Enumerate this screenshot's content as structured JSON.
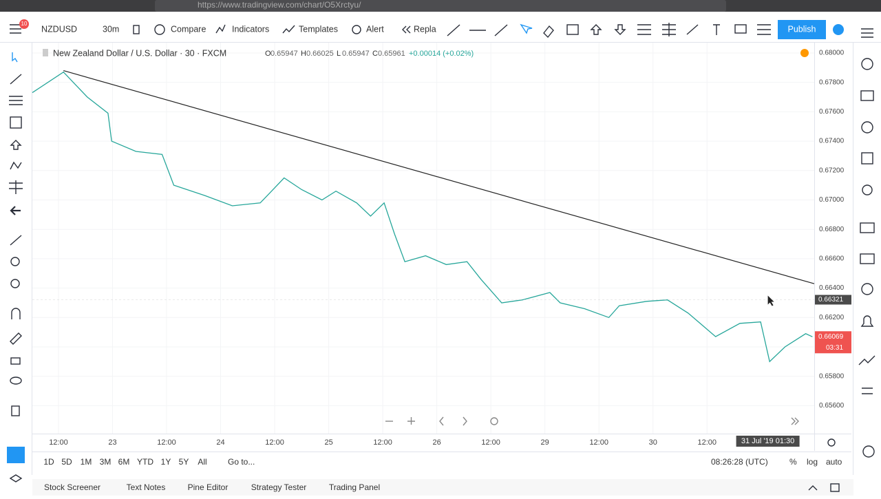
{
  "browser": {
    "url": "https://www.tradingview.com/chart/O5Xrctyu/"
  },
  "toolbar": {
    "badge": "10",
    "symbol": "NZDUSD",
    "interval": "30m",
    "compare": "Compare",
    "indicators": "Indicators",
    "templates": "Templates",
    "alert": "Alert",
    "replay": "Repla",
    "publish": "Publish"
  },
  "legend": {
    "title": "New Zealand Dollar / U.S. Dollar · 30 · FXCM",
    "ohlc": [
      {
        "label": "O",
        "value": "0.65947"
      },
      {
        "label": "H",
        "value": "0.66025"
      },
      {
        "label": "L",
        "value": "0.65947"
      },
      {
        "label": "C",
        "value": "0.65961"
      }
    ],
    "change": "+0.00014 (+0.02%)"
  },
  "chart_data": {
    "type": "line",
    "grid": true,
    "series": [
      {
        "name": "NZDUSD",
        "color": "#26a69a",
        "x": [
          -5.8,
          1.1,
          6.4,
          11,
          11.8,
          17.2,
          23,
          25.6,
          32.5,
          38.6,
          44.8,
          47,
          50.1,
          54,
          58.5,
          61.6,
          66.2,
          69.3,
          72.3,
          74.6,
          76.9,
          81.5,
          86.1,
          90.7,
          93.8,
          98.4,
          103,
          109.1,
          111.4,
          116.8,
          122.2,
          124.5,
          130.6,
          135.2,
          139.8,
          145.9,
          151.3,
          155.9,
          157.9,
          161.3,
          165.9,
          167.4
        ],
        "values": [
          0.6773,
          0.6787,
          0.677,
          0.6759,
          0.674,
          0.6733,
          0.6731,
          0.671,
          0.6703,
          0.6696,
          0.6698,
          0.6705,
          0.6715,
          0.6707,
          0.67,
          0.6706,
          0.6698,
          0.6689,
          0.6698,
          0.6677,
          0.6658,
          0.6662,
          0.6656,
          0.6658,
          0.6646,
          0.663,
          0.6632,
          0.6637,
          0.663,
          0.6626,
          0.662,
          0.6628,
          0.6631,
          0.6632,
          0.6623,
          0.6607,
          0.6616,
          0.6617,
          0.659,
          0.66,
          0.6609,
          0.66069
        ]
      }
    ],
    "trendline": {
      "x": [
        1.1,
        167.8
      ],
      "values": [
        0.6788,
        0.6643
      ],
      "color": "#222222"
    },
    "xlim": [
      -5.8,
      167.8
    ],
    "ylim": [
      0.6541,
      0.6807
    ],
    "xticks": [
      {
        "value": 0,
        "label": "12:00"
      },
      {
        "value": 12,
        "label": "23"
      },
      {
        "value": 24,
        "label": "12:00"
      },
      {
        "value": 36,
        "label": "24"
      },
      {
        "value": 48,
        "label": "12:00"
      },
      {
        "value": 60,
        "label": "25"
      },
      {
        "value": 72,
        "label": "12:00"
      },
      {
        "value": 84,
        "label": "26"
      },
      {
        "value": 96,
        "label": "12:00"
      },
      {
        "value": 108,
        "label": "29"
      },
      {
        "value": 120,
        "label": "12:00"
      },
      {
        "value": 132,
        "label": "30"
      },
      {
        "value": 144,
        "label": "12:00"
      }
    ],
    "yticks": [
      {
        "value": 0.68,
        "label": "0.68000"
      },
      {
        "value": 0.678,
        "label": "0.67800"
      },
      {
        "value": 0.676,
        "label": "0.67600"
      },
      {
        "value": 0.674,
        "label": "0.67400"
      },
      {
        "value": 0.672,
        "label": "0.67200"
      },
      {
        "value": 0.67,
        "label": "0.67000"
      },
      {
        "value": 0.668,
        "label": "0.66800"
      },
      {
        "value": 0.666,
        "label": "0.66600"
      },
      {
        "value": 0.664,
        "label": "0.66400"
      },
      {
        "value": 0.662,
        "label": "0.66200"
      },
      {
        "value": 0.66,
        "label": "0.66000"
      },
      {
        "value": 0.658,
        "label": "0.65800"
      },
      {
        "value": 0.656,
        "label": "0.65600"
      }
    ],
    "crosshair": {
      "x": 157.5,
      "price": {
        "value": 0.66321,
        "label": "0.66321"
      },
      "time": "31 Jul '19 01:30"
    },
    "last_price": {
      "value": 0.66069,
      "label": "0.66069",
      "countdown": "03:31"
    }
  },
  "bottom_bar": {
    "ranges": [
      "1D",
      "5D",
      "1M",
      "3M",
      "6M",
      "YTD",
      "1Y",
      "5Y",
      "All"
    ],
    "goto": "Go to...",
    "clock": "08:26:28 (UTC)",
    "percent": "%",
    "log": "log",
    "auto": "auto"
  },
  "tabs": [
    "Stock Screener",
    "Text Notes",
    "Pine Editor",
    "Strategy Tester",
    "Trading Panel"
  ]
}
